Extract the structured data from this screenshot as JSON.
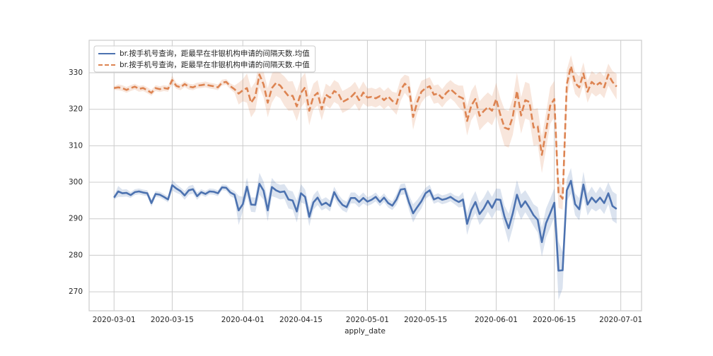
{
  "chart_data": {
    "type": "line",
    "x_label": "apply_date",
    "x": [
      "2020-03-01",
      "2020-03-02",
      "2020-03-03",
      "2020-03-04",
      "2020-03-05",
      "2020-03-06",
      "2020-03-07",
      "2020-03-08",
      "2020-03-09",
      "2020-03-10",
      "2020-03-11",
      "2020-03-12",
      "2020-03-13",
      "2020-03-14",
      "2020-03-15",
      "2020-03-16",
      "2020-03-17",
      "2020-03-18",
      "2020-03-19",
      "2020-03-20",
      "2020-03-21",
      "2020-03-22",
      "2020-03-23",
      "2020-03-24",
      "2020-03-25",
      "2020-03-26",
      "2020-03-27",
      "2020-03-28",
      "2020-03-29",
      "2020-03-30",
      "2020-03-31",
      "2020-04-01",
      "2020-04-02",
      "2020-04-03",
      "2020-04-04",
      "2020-04-05",
      "2020-04-06",
      "2020-04-07",
      "2020-04-08",
      "2020-04-09",
      "2020-04-10",
      "2020-04-11",
      "2020-04-12",
      "2020-04-13",
      "2020-04-14",
      "2020-04-15",
      "2020-04-16",
      "2020-04-17",
      "2020-04-18",
      "2020-04-19",
      "2020-04-20",
      "2020-04-21",
      "2020-04-22",
      "2020-04-23",
      "2020-04-24",
      "2020-04-25",
      "2020-04-26",
      "2020-04-27",
      "2020-04-28",
      "2020-04-29",
      "2020-04-30",
      "2020-05-01",
      "2020-05-02",
      "2020-05-03",
      "2020-05-04",
      "2020-05-05",
      "2020-05-06",
      "2020-05-07",
      "2020-05-08",
      "2020-05-09",
      "2020-05-10",
      "2020-05-11",
      "2020-05-12",
      "2020-05-13",
      "2020-05-14",
      "2020-05-15",
      "2020-05-16",
      "2020-05-17",
      "2020-05-18",
      "2020-05-19",
      "2020-05-20",
      "2020-05-21",
      "2020-05-22",
      "2020-05-23",
      "2020-05-24",
      "2020-05-25",
      "2020-05-26",
      "2020-05-27",
      "2020-05-28",
      "2020-05-29",
      "2020-05-30",
      "2020-05-31",
      "2020-06-01",
      "2020-06-02",
      "2020-06-03",
      "2020-06-04",
      "2020-06-05",
      "2020-06-06",
      "2020-06-07",
      "2020-06-08",
      "2020-06-09",
      "2020-06-10",
      "2020-06-11",
      "2020-06-12",
      "2020-06-13",
      "2020-06-14",
      "2020-06-15",
      "2020-06-16",
      "2020-06-17",
      "2020-06-18",
      "2020-06-19",
      "2020-06-20",
      "2020-06-21",
      "2020-06-22",
      "2020-06-23",
      "2020-06-24",
      "2020-06-25",
      "2020-06-26",
      "2020-06-27",
      "2020-06-28",
      "2020-06-29",
      "2020-06-30"
    ],
    "series": [
      {
        "name": "br.按手机号查询，距最早在非银机构申请的间隔天数.均值",
        "color": "#4c72b0",
        "dashed": false,
        "values": [
          295.8,
          297.5,
          297.0,
          297.1,
          296.5,
          297.3,
          297.5,
          297.2,
          297.0,
          294.3,
          296.8,
          296.6,
          296.0,
          295.3,
          299.2,
          298.3,
          297.6,
          296.4,
          297.8,
          298.1,
          296.2,
          297.3,
          296.8,
          297.5,
          297.4,
          297.0,
          298.6,
          298.5,
          297.2,
          296.6,
          292.3,
          294.0,
          298.8,
          293.9,
          293.8,
          299.6,
          297.7,
          292.3,
          298.7,
          297.8,
          297.3,
          297.5,
          295.3,
          295.0,
          292.0,
          297.0,
          296.0,
          290.5,
          294.5,
          295.8,
          293.8,
          294.4,
          293.5,
          297.3,
          295.2,
          293.8,
          293.2,
          295.7,
          295.7,
          294.6,
          295.7,
          294.7,
          295.2,
          296.0,
          294.6,
          295.8,
          294.3,
          293.6,
          295.3,
          298.0,
          298.2,
          294.5,
          291.5,
          293.2,
          294.8,
          297.0,
          297.8,
          295.3,
          295.8,
          295.2,
          295.5,
          296.0,
          295.2,
          294.6,
          295.3,
          288.6,
          292.4,
          294.6,
          291.3,
          292.8,
          294.9,
          293.0,
          295.3,
          295.2,
          290.6,
          287.4,
          291.5,
          296.6,
          293.2,
          294.8,
          293.0,
          291.0,
          289.7,
          283.6,
          288.8,
          291.5,
          294.4,
          275.8,
          275.9,
          297.8,
          300.4,
          294.0,
          292.6,
          299.4,
          293.9,
          295.8,
          294.5,
          295.8,
          294.3,
          297.0,
          293.5,
          292.7
        ],
        "ci": [
          0.5,
          1.5,
          1.0,
          1.0,
          0.8,
          0.8,
          0.8,
          0.8,
          0.8,
          1.0,
          0.8,
          0.8,
          0.8,
          0.8,
          1.5,
          1.2,
          1.0,
          1.2,
          1.2,
          1.2,
          1.0,
          0.8,
          0.8,
          0.8,
          0.8,
          0.8,
          0.8,
          0.8,
          1.0,
          1.0,
          4.0,
          2,
          2.5,
          2,
          2,
          3,
          2.5,
          3,
          2.5,
          2,
          2,
          2,
          2.5,
          2.5,
          3,
          2.5,
          2,
          2.5,
          2,
          2,
          1.5,
          1.5,
          1.5,
          1.5,
          1.5,
          1.5,
          1.5,
          1.5,
          1.5,
          1.5,
          1.5,
          1.2,
          1.2,
          1.2,
          1.2,
          1.2,
          1.2,
          1.2,
          1.5,
          1.5,
          1.5,
          2,
          2.5,
          2,
          2,
          1.5,
          1.5,
          1.2,
          1.2,
          1.2,
          1.2,
          1.2,
          1.2,
          1.5,
          2,
          3,
          3,
          3,
          3,
          3,
          3,
          3,
          3,
          3,
          3,
          4,
          4,
          4,
          3.5,
          3,
          3,
          3,
          3.5,
          4,
          4,
          4,
          4,
          8,
          5,
          3,
          3.5,
          3,
          3,
          3.5,
          3,
          3,
          2.5,
          3,
          3,
          3,
          4,
          4
        ]
      },
      {
        "name": "br.按手机号查询，距最早在非银机构申请的间隔天数.中值",
        "color": "#dd8452",
        "dashed": true,
        "values": [
          325.8,
          326.0,
          325.8,
          325.3,
          325.8,
          326.2,
          325.6,
          325.8,
          325.2,
          324.5,
          325.8,
          325.5,
          325.8,
          325.6,
          328.0,
          326.4,
          326.0,
          326.9,
          326.2,
          326.0,
          326.5,
          326.6,
          326.8,
          326.5,
          326.3,
          326.0,
          327.3,
          327.5,
          326.3,
          325.5,
          324.3,
          325.2,
          325.8,
          321.8,
          323.5,
          329.5,
          326.8,
          321.8,
          325.8,
          327.2,
          326.5,
          325.0,
          323.6,
          323.7,
          320.8,
          324.5,
          326.0,
          319.6,
          323.5,
          324.5,
          320.0,
          324.0,
          323.2,
          325.0,
          324.3,
          322.0,
          322.6,
          323.3,
          324.5,
          322.5,
          324.6,
          323.2,
          323.4,
          323.0,
          323.6,
          322.5,
          323.5,
          322.3,
          321.5,
          325.3,
          327.0,
          326.0,
          317.9,
          322.0,
          324.8,
          325.8,
          326.3,
          324.0,
          324.3,
          323.0,
          324.5,
          325.5,
          324.5,
          323.5,
          323.0,
          316.8,
          321.0,
          322.8,
          318.2,
          319.5,
          320.6,
          319.6,
          322.8,
          318.5,
          315.0,
          314.5,
          318.0,
          325.0,
          318.3,
          322.5,
          322.0,
          315.0,
          315.3,
          307.5,
          314.0,
          321.0,
          322.8,
          297.0,
          295.5,
          326.8,
          331.8,
          327.2,
          326.0,
          329.8,
          324.8,
          327.5,
          326.5,
          327.3,
          326.0,
          329.5,
          327.5,
          326.2
        ],
        "ci": [
          0.5,
          0.8,
          0.8,
          0.8,
          0.8,
          0.8,
          0.8,
          0.8,
          0.8,
          0.8,
          0.8,
          0.8,
          0.8,
          0.8,
          1.2,
          0.8,
          0.8,
          0.8,
          0.8,
          0.8,
          0.8,
          0.8,
          0.8,
          0.8,
          0.8,
          0.8,
          0.8,
          0.8,
          0.8,
          1.0,
          3,
          3,
          4,
          4,
          4,
          3.5,
          3.5,
          4,
          4,
          3.5,
          3.5,
          4,
          4,
          4,
          4,
          4,
          4,
          4,
          3.5,
          3.5,
          3,
          3,
          3,
          3,
          3,
          3,
          3,
          3,
          3,
          3,
          3,
          2.5,
          2.5,
          2.5,
          2.5,
          2.5,
          2.5,
          2.5,
          3,
          3,
          2.5,
          3,
          3.5,
          3,
          3,
          2.5,
          2.5,
          2.5,
          2.5,
          2.5,
          2.5,
          2.5,
          2.5,
          3,
          3.5,
          4,
          4,
          4,
          4,
          4,
          4,
          4,
          4.5,
          4.5,
          5,
          5,
          5,
          5,
          5,
          5,
          5,
          5,
          5,
          5,
          5,
          5,
          5,
          4,
          3,
          4,
          3,
          3,
          3,
          3,
          3,
          3,
          3,
          3,
          3,
          3,
          3,
          3.5
        ]
      }
    ],
    "xlim": [
      "2020-02-24",
      "2020-07-06"
    ],
    "xticks": [
      "2020-03-01",
      "2020-03-15",
      "2020-04-01",
      "2020-04-15",
      "2020-05-01",
      "2020-05-15",
      "2020-06-01",
      "2020-06-15",
      "2020-07-01"
    ],
    "ylim": [
      264.8,
      338.9
    ],
    "yticks": [
      270,
      280,
      290,
      300,
      310,
      320,
      330
    ],
    "grid": true,
    "legend": "upper left"
  }
}
